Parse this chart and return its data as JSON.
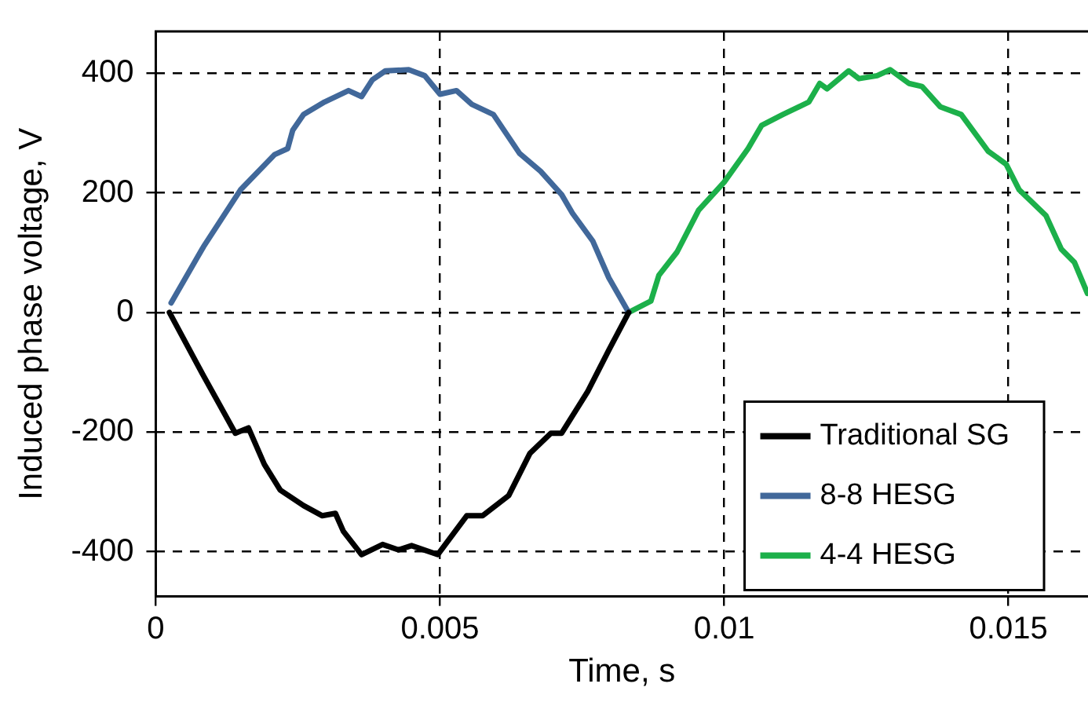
{
  "chart_data": {
    "type": "line",
    "xlabel": "Time, s",
    "ylabel": "Induced phase voltage, V",
    "xlim": [
      0,
      0.0164
    ],
    "xticks": [
      0,
      0.005,
      0.01,
      0.015
    ],
    "ylim": [
      -475,
      470
    ],
    "yticks": [
      -400,
      -200,
      0,
      200,
      400
    ],
    "grid": true,
    "legend": "bottom right",
    "marker": "none",
    "line_style": "solid",
    "series": [
      {
        "name": "Traditional SG",
        "color": "#000000",
        "x": [
          0.00024,
          0.00084,
          0.0014,
          0.00163,
          0.00191,
          0.00219,
          0.0026,
          0.00293,
          0.00316,
          0.0033,
          0.00362,
          0.00399,
          0.00427,
          0.0045,
          0.00496,
          0.00547,
          0.00575,
          0.00621,
          0.00658,
          0.00695,
          0.00714,
          0.0076,
          0.00797,
          0.00832
        ],
        "values": [
          0,
          -106,
          -202,
          -193,
          -254,
          -297,
          -323,
          -340,
          -336,
          -366,
          -405,
          -388,
          -397,
          -390,
          -405,
          -340,
          -340,
          -306,
          -236,
          -202,
          -202,
          -132,
          -63,
          0
        ]
      },
      {
        "name": "8-8 HESG",
        "color": "#41689a",
        "x": [
          0.00027,
          0.00084,
          0.00149,
          0.00209,
          0.00232,
          0.00241,
          0.0026,
          0.00297,
          0.00339,
          0.00362,
          0.00381,
          0.00404,
          0.00445,
          0.00473,
          0.005,
          0.00529,
          0.00556,
          0.00594,
          0.0064,
          0.00677,
          0.00714,
          0.00733,
          0.00769,
          0.00797,
          0.00832
        ],
        "values": [
          16,
          110,
          205,
          264,
          274,
          305,
          331,
          352,
          371,
          361,
          389,
          404,
          406,
          396,
          365,
          371,
          348,
          331,
          266,
          236,
          197,
          166,
          119,
          58,
          0
        ]
      },
      {
        "name": "4-4 HESG",
        "color": "#1cb04a",
        "x": [
          0.00832,
          0.00871,
          0.00885,
          0.00917,
          0.00955,
          0.01,
          0.01042,
          0.01066,
          0.01103,
          0.01149,
          0.01168,
          0.01181,
          0.01219,
          0.01237,
          0.01269,
          0.01292,
          0.01325,
          0.01348,
          0.0138,
          0.01417,
          0.01464,
          0.01496,
          0.01519,
          0.01566,
          0.01593,
          0.01616,
          0.01639
        ],
        "values": [
          0,
          19,
          62,
          101,
          171,
          218,
          274,
          313,
          331,
          352,
          383,
          374,
          404,
          391,
          396,
          406,
          383,
          378,
          344,
          331,
          270,
          248,
          205,
          162,
          106,
          84,
          32
        ]
      }
    ]
  }
}
